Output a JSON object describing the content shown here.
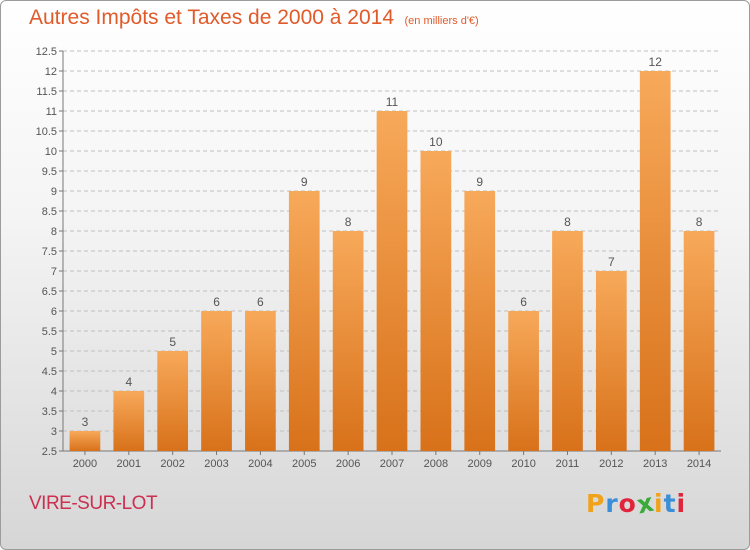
{
  "header": {
    "title": "Autres Impôts et Taxes de 2000 à 2014",
    "subtitle": "(en milliers d'€)"
  },
  "footer": {
    "town": "VIRE-SUR-LOT",
    "logo_letters": [
      "P",
      "r",
      "o",
      "x",
      "i",
      "t",
      "i"
    ],
    "logo_colors": [
      "#f0a21a",
      "#3a8fd8",
      "#e0243a",
      "#3aaa3a",
      "#f0a21a",
      "#3a8fd8",
      "#e0243a"
    ]
  },
  "colors": {
    "bar_top": "#f7a95a",
    "bar_bottom": "#d8711a",
    "grid": "#bfbfbf",
    "axis_text": "#555555",
    "title": "#e05a2a",
    "town": "#cc2f4f"
  },
  "chart_data": {
    "type": "bar",
    "title": "Autres Impôts et Taxes de 2000 à 2014",
    "subtitle": "(en milliers d'€)",
    "categories": [
      "2000",
      "2001",
      "2002",
      "2003",
      "2004",
      "2005",
      "2006",
      "2007",
      "2008",
      "2009",
      "2010",
      "2011",
      "2012",
      "2013",
      "2014"
    ],
    "values": [
      3,
      4,
      5,
      6,
      6,
      9,
      8,
      11,
      10,
      9,
      6,
      8,
      7,
      12,
      8
    ],
    "value_labels": [
      "3",
      "4",
      "5",
      "6",
      "6",
      "9",
      "8",
      "11",
      "10",
      "9",
      "6",
      "8",
      "7",
      "12",
      "8"
    ],
    "ylim": [
      2.5,
      12.5
    ],
    "yticks": [
      "2.5",
      "3",
      "3.5",
      "4",
      "4.5",
      "5",
      "5.5",
      "6",
      "6.5",
      "7",
      "7.5",
      "8",
      "8.5",
      "9",
      "9.5",
      "10",
      "10.5",
      "11",
      "11.5",
      "12",
      "12.5"
    ],
    "grid": true,
    "legend": "none"
  }
}
